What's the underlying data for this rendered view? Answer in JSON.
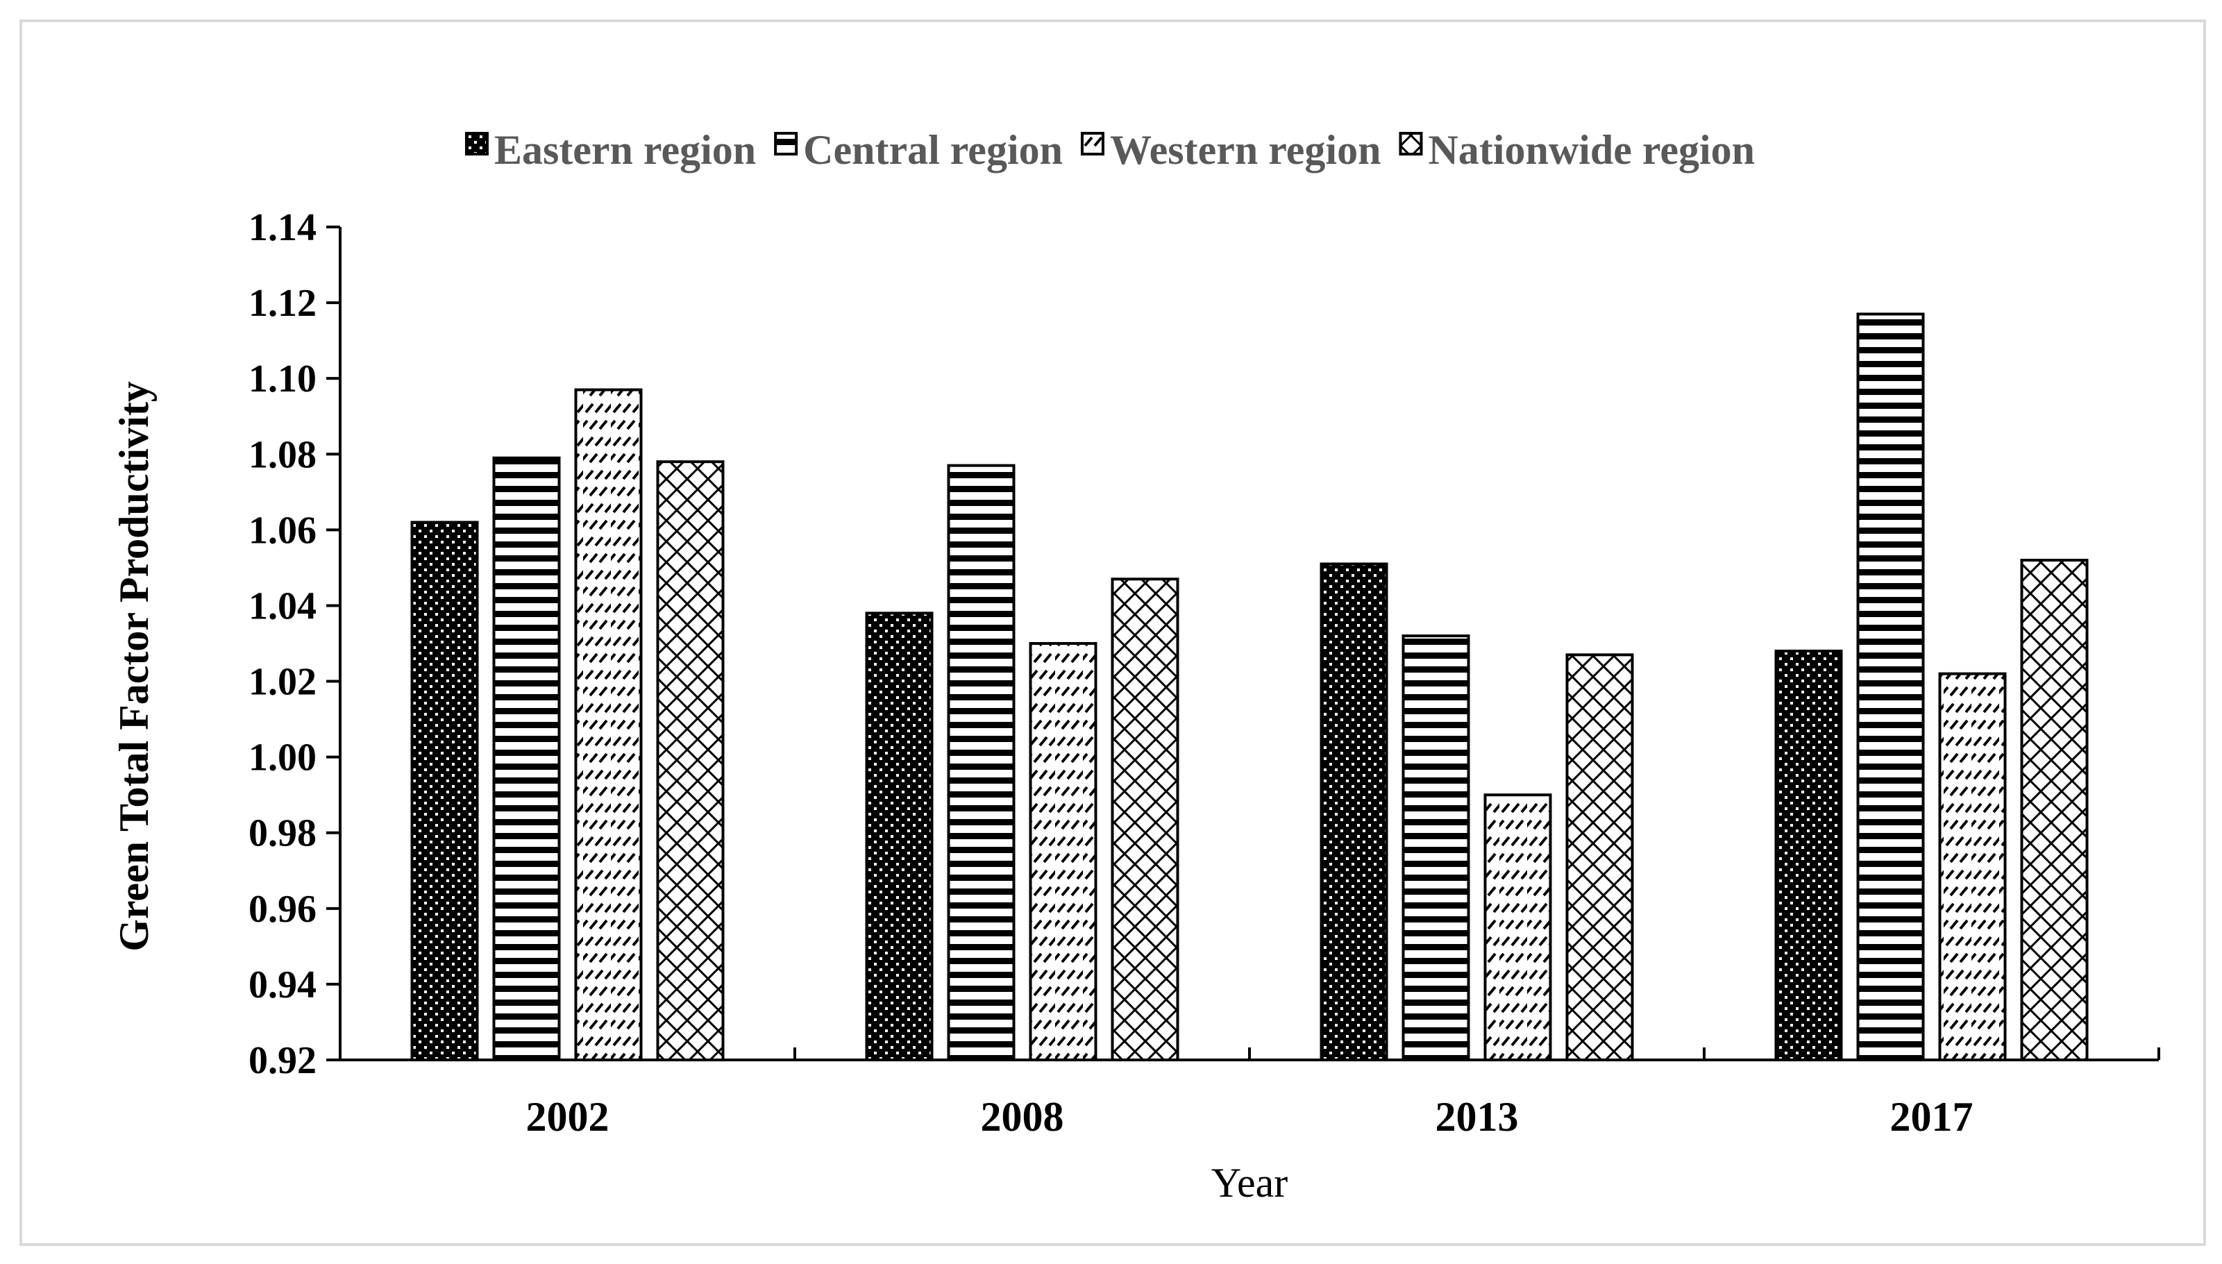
{
  "chart_data": {
    "type": "bar",
    "title": "",
    "xlabel": "Year",
    "ylabel": "Green Total Factor Productivity",
    "categories": [
      "2002",
      "2008",
      "2013",
      "2017"
    ],
    "ylim": [
      0.92,
      1.14
    ],
    "yticks": [
      "0.92",
      "0.94",
      "0.96",
      "0.98",
      "1.00",
      "1.02",
      "1.04",
      "1.06",
      "1.08",
      "1.10",
      "1.12",
      "1.14"
    ],
    "legend_position": "top",
    "grid": false,
    "series": [
      {
        "name": "Eastern region",
        "pattern": "dots",
        "values": [
          1.062,
          1.038,
          1.051,
          1.028
        ]
      },
      {
        "name": "Central region",
        "pattern": "horizontal-stripes",
        "values": [
          1.079,
          1.077,
          1.032,
          1.117
        ]
      },
      {
        "name": "Western region",
        "pattern": "dashes",
        "values": [
          1.097,
          1.03,
          0.99,
          1.022
        ]
      },
      {
        "name": "Nationwide region",
        "pattern": "crosshatch",
        "values": [
          1.078,
          1.047,
          1.027,
          1.052
        ]
      }
    ],
    "colors": {
      "bar_stroke": "#000000",
      "axis": "#000000",
      "legend_text": "#595959",
      "frame": "#d9d9d9"
    }
  }
}
